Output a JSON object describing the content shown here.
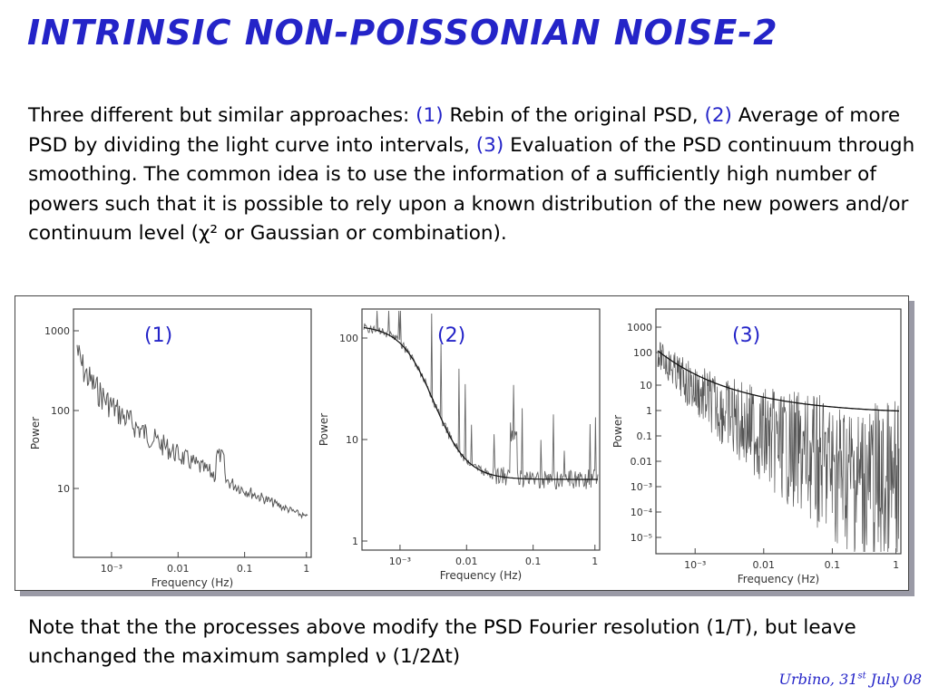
{
  "slide": {
    "title": "INTRINSIC NON-POISSONIAN NOISE-2",
    "intro": [
      {
        "t": "Three different but similar approaches: ",
        "c": ""
      },
      {
        "t": "(1)",
        "c": "hl"
      },
      {
        "t": " Rebin of the original PSD, ",
        "c": ""
      },
      {
        "t": "(2)",
        "c": "hl"
      },
      {
        "t": " Average of more PSD by dividing the light curve into intervals, ",
        "c": ""
      },
      {
        "t": "(3)",
        "c": "hl"
      },
      {
        "t": " Evaluation of the PSD continuum through smoothing.  The common idea is to use the information of  a sufficiently high number of  powers such that it is possible to rely upon a known distribution of the new powers and/or continuum level (χ² or Gaussian or combination).",
        "c": ""
      }
    ],
    "note": "Note that the the processes above modify the PSD Fourier resolution (1/T), but leave unchanged the maximum sampled ν (1/2Δt)",
    "footer_place": "Urbino, 31",
    "footer_sup": "st",
    "footer_date": " July 08"
  },
  "panels": [
    {
      "label": "(1)",
      "ylabel": "Power",
      "xlabel": "Frequency (Hz)",
      "yticks": [
        "1000",
        "100",
        "10"
      ],
      "xticks": [
        "10⁻³",
        "0.01",
        "0.1",
        "1"
      ]
    },
    {
      "label": "(2)",
      "ylabel": "Power",
      "xlabel": "Frequency (Hz)",
      "yticks": [
        "100",
        "10",
        "1"
      ],
      "xticks": [
        "10⁻³",
        "0.01",
        "0.1",
        "1"
      ]
    },
    {
      "label": "(3)",
      "ylabel": "Power",
      "xlabel": "Frequency (Hz)",
      "yticks": [
        "1000",
        "100",
        "10",
        "1",
        "0.1",
        "0.01",
        "10⁻³",
        "10⁻⁴",
        "10⁻⁵"
      ],
      "xticks": [
        "10⁻³",
        "0.01",
        "0.1",
        "1"
      ]
    }
  ]
}
